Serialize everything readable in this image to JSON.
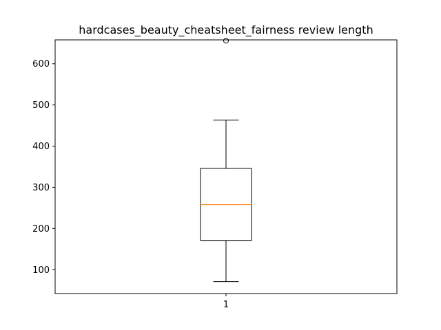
{
  "chart_data": {
    "type": "box",
    "title": "hardcases_beauty_cheatsheet_fairness review length",
    "xlabel": "",
    "ylabel": "",
    "categories": [
      "1"
    ],
    "ylim": [
      42,
      658
    ],
    "yticks": [
      100,
      200,
      300,
      400,
      500,
      600
    ],
    "boxes": [
      {
        "label": "1",
        "whisker_low": 71,
        "q1": 171,
        "median": 258,
        "q3": 346,
        "whisker_high": 463,
        "outliers": [
          656
        ]
      }
    ],
    "grid": false,
    "colors": {
      "box": "#000000",
      "median": "#ff7f0e",
      "outlier": "#000000"
    }
  }
}
